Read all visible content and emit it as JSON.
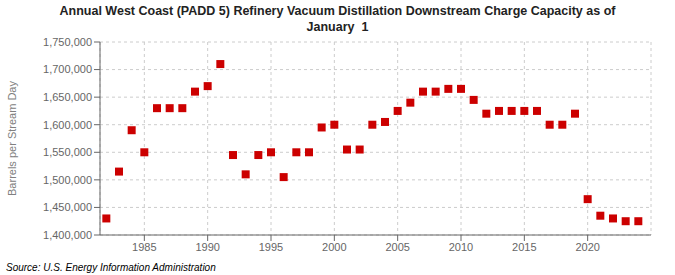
{
  "chart_data": {
    "type": "scatter",
    "title": "Annual West Coast (PADD 5) Refinery Vacuum Distillation Downstream Charge Capacity as of\nJanuary  1",
    "ylabel": "Barrels per Stream Day",
    "source": "Source: U.S. Energy Information Administration",
    "color": "#cc0000",
    "marker": "square",
    "grid": true,
    "x": [
      1982,
      1983,
      1984,
      1985,
      1986,
      1987,
      1988,
      1989,
      1990,
      1991,
      1992,
      1993,
      1994,
      1995,
      1996,
      1997,
      1998,
      1999,
      2000,
      2001,
      2002,
      2003,
      2004,
      2005,
      2006,
      2007,
      2008,
      2009,
      2010,
      2011,
      2012,
      2013,
      2014,
      2015,
      2016,
      2017,
      2018,
      2019,
      2020,
      2021,
      2022,
      2023,
      2024
    ],
    "values": [
      1430000,
      1515000,
      1590000,
      1550000,
      1630000,
      1630000,
      1630000,
      1660000,
      1670000,
      1710000,
      1545000,
      1510000,
      1545000,
      1550000,
      1505000,
      1550000,
      1550000,
      1595000,
      1600000,
      1555000,
      1555000,
      1600000,
      1605000,
      1625000,
      1640000,
      1660000,
      1660000,
      1665000,
      1665000,
      1645000,
      1620000,
      1625000,
      1625000,
      1625000,
      1625000,
      1600000,
      1600000,
      1620000,
      1465000,
      1435000,
      1430000,
      1425000,
      1425000
    ],
    "xlim": [
      1981.5,
      2025
    ],
    "xticks": [
      1985,
      1990,
      1995,
      2000,
      2005,
      2010,
      2015,
      2020
    ],
    "ylim": [
      1400000,
      1750000
    ],
    "yticks": [
      {
        "value": 1400000,
        "label": "1,400,000"
      },
      {
        "value": 1450000,
        "label": "1,450,000"
      },
      {
        "value": 1500000,
        "label": "1,500,000"
      },
      {
        "value": 1550000,
        "label": "1,550,000"
      },
      {
        "value": 1600000,
        "label": "1,600,000"
      },
      {
        "value": 1650000,
        "label": "1,650,000"
      },
      {
        "value": 1700000,
        "label": "1,700,000"
      },
      {
        "value": 1750000,
        "label": "1,750,000"
      }
    ]
  }
}
